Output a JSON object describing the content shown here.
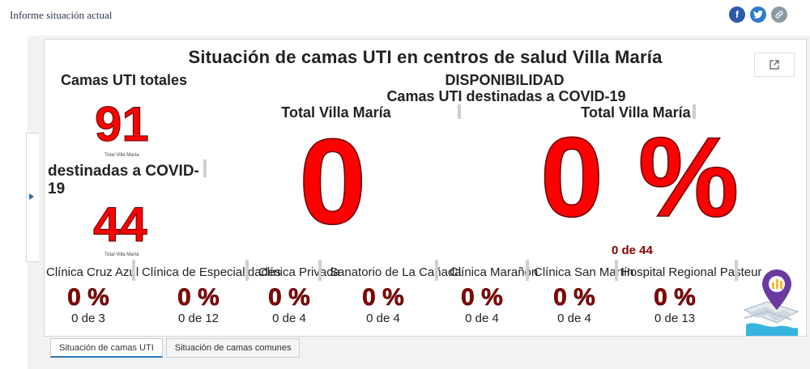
{
  "header": {
    "title": "Informe situación actual",
    "social": [
      {
        "name": "facebook",
        "glyph": "f"
      },
      {
        "name": "twitter",
        "glyph": "t"
      },
      {
        "name": "link",
        "glyph": "⚲"
      }
    ]
  },
  "dashboard": {
    "title": "Situación de camas UTI en centros de salud Villa María",
    "left": {
      "total_label": "Camas UTI totales",
      "total_value": "91",
      "total_sub": "Total Villa María",
      "covid_label": "destinadas a COVID-19",
      "covid_value": "44",
      "covid_sub": "Total Villa María"
    },
    "availability": {
      "title": "DISPONIBILIDAD",
      "subtitle": "Camas UTI destinadas a COVID-19",
      "count_label": "Total Villa María",
      "count_value": "0",
      "pct_label": "Total Villa María",
      "pct_value": "0 %",
      "pct_fraction": "0 de 44"
    },
    "clinics": [
      {
        "name": "Clínica Cruz Azul",
        "pct": "0 %",
        "fraction": "0 de 3"
      },
      {
        "name": "Clínica de Especialidades",
        "pct": "0 %",
        "fraction": "0 de 12"
      },
      {
        "name": "Clínica Privada",
        "pct": "0 %",
        "fraction": "0 de 4"
      },
      {
        "name": "Sanatorio de La Cañada",
        "pct": "0 %",
        "fraction": "0 de 4"
      },
      {
        "name": "Clínica Marañón",
        "pct": "0 %",
        "fraction": "0 de 4"
      },
      {
        "name": "Clínica San Martín",
        "pct": "0 %",
        "fraction": "0 de 4"
      },
      {
        "name": "Hospital Regional Pasteur",
        "pct": "0 %",
        "fraction": "0 de 13"
      }
    ]
  },
  "tabs": [
    {
      "label": "Situación de camas UTI",
      "active": true
    },
    {
      "label": "Situación de camas comunes",
      "active": false
    }
  ],
  "colors": {
    "accent_red": "#ff0000",
    "dark_red": "#8b0000",
    "tab_active": "#2a7ab8"
  }
}
